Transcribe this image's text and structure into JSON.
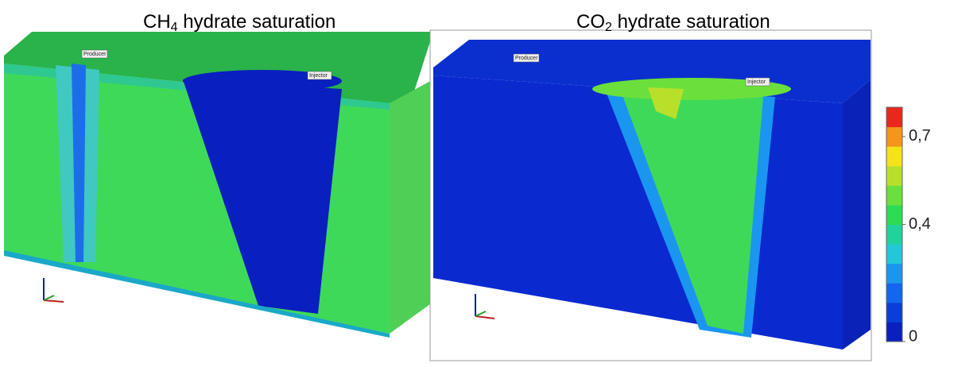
{
  "panels": [
    {
      "title": {
        "main": "CH",
        "sub": "4",
        "rest": " hydrate saturation"
      },
      "wells": [
        "Producer",
        "Injector"
      ]
    },
    {
      "title": {
        "main": "CO",
        "sub": "2",
        "rest": " hydrate saturation"
      },
      "wells": [
        "Producer",
        "Injector"
      ]
    }
  ],
  "colorbar": {
    "range": [
      0,
      0.8
    ],
    "colors": [
      "#0a1fbf",
      "#0b3ed8",
      "#1266ef",
      "#1a96f0",
      "#22c8d8",
      "#1fd39a",
      "#2ddc55",
      "#6be03c",
      "#b8e02a",
      "#f4e31a",
      "#f3961a",
      "#e8281a"
    ],
    "ticks": [
      {
        "value": 0,
        "label": "0"
      },
      {
        "value": 0.4,
        "label": "0,4"
      },
      {
        "value": 0.7,
        "label": "0,7"
      }
    ]
  }
}
